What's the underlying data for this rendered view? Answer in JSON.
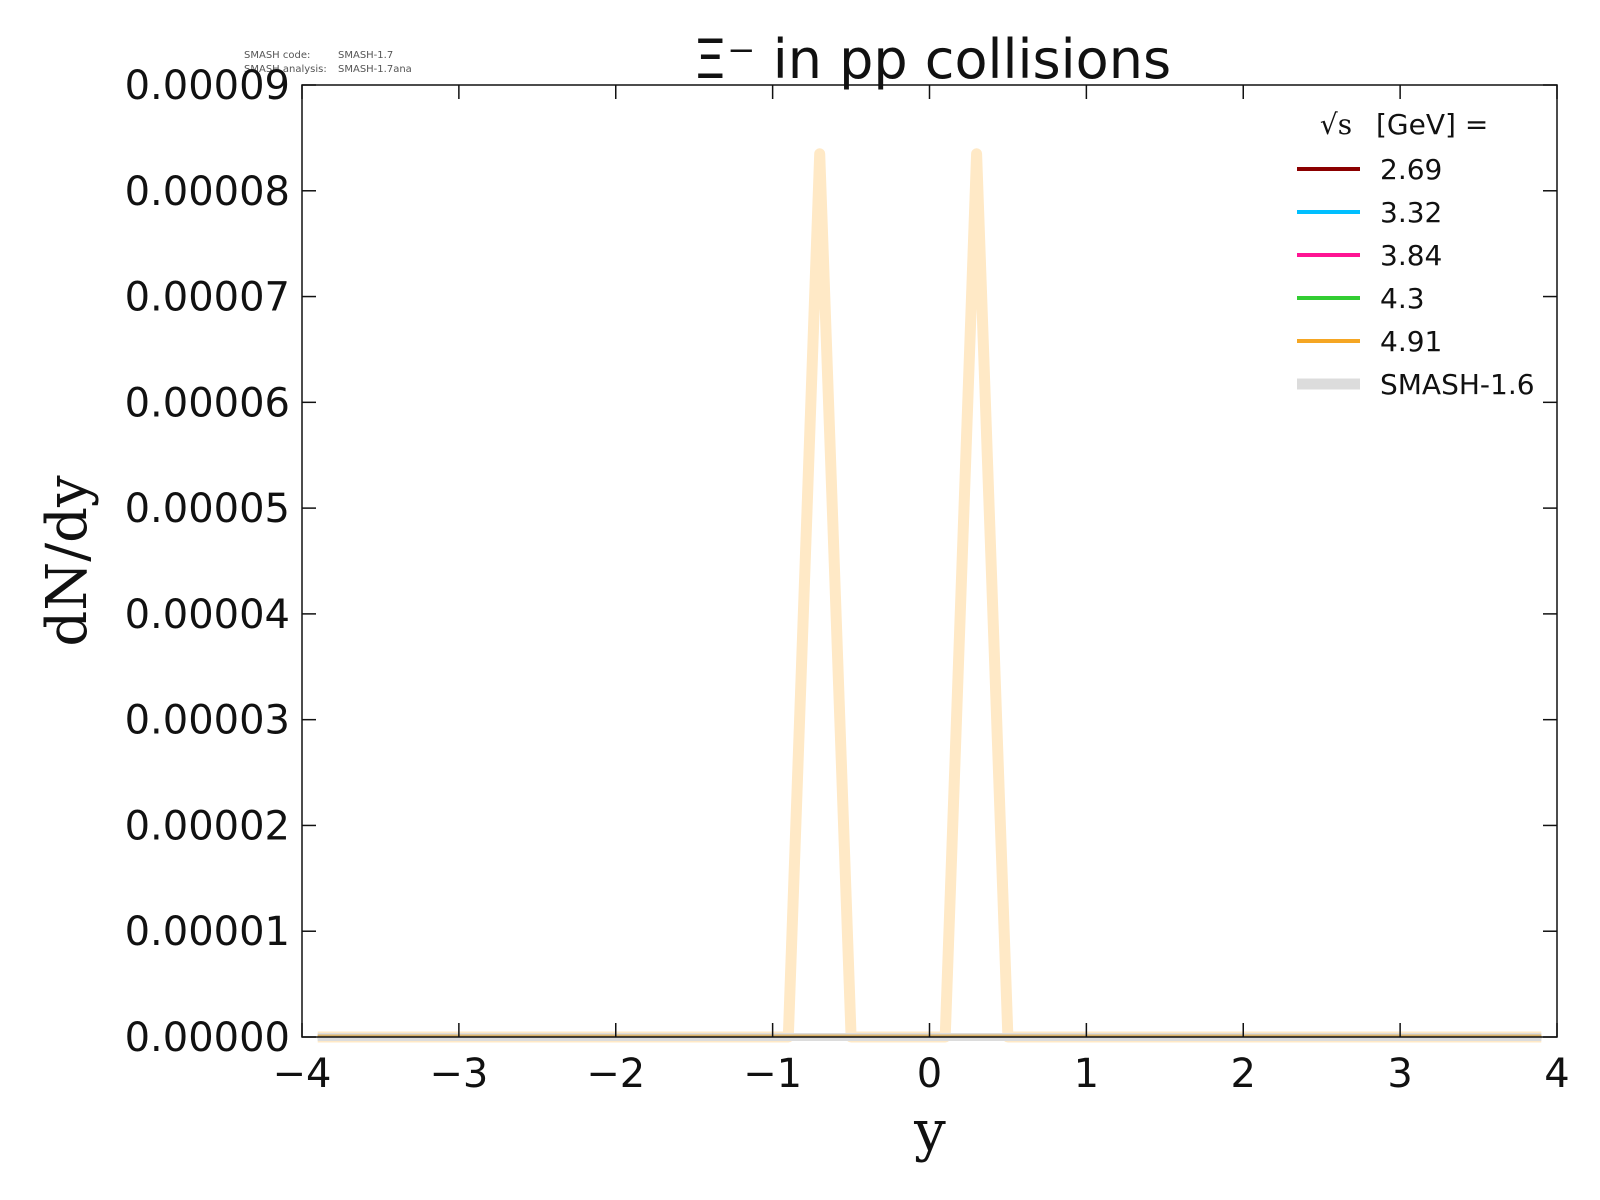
{
  "version_info": {
    "code_label": "SMASH code:",
    "code_value": "SMASH-1.7",
    "analysis_label": "SMASH analysis:",
    "analysis_value": "SMASH-1.7ana"
  },
  "chart_data": {
    "type": "line",
    "title": "Ξ⁻ in pp collisions",
    "xlabel": "y",
    "ylabel": "dN/dy",
    "xlim": [
      -4,
      4
    ],
    "ylim": [
      0,
      9e-05
    ],
    "x_ticks": [
      "−4",
      "−3",
      "−2",
      "−1",
      "0",
      "1",
      "2",
      "3",
      "4"
    ],
    "y_ticks": [
      "0.00000",
      "0.00001",
      "0.00002",
      "0.00003",
      "0.00004",
      "0.00005",
      "0.00006",
      "0.00007",
      "0.00008",
      "0.00009"
    ],
    "grid": false,
    "legend_title_symbol": "√s",
    "legend_title_unit": "[GeV] =",
    "legend_position": "top-right",
    "series": [
      {
        "name": "2.69",
        "color": "#8b0000",
        "x": [
          -3.9,
          3.9
        ],
        "y": [
          0,
          0
        ]
      },
      {
        "name": "3.32",
        "color": "#00bfff",
        "x": [
          -3.9,
          3.9
        ],
        "y": [
          0,
          0
        ]
      },
      {
        "name": "3.84",
        "color": "#ff1493",
        "x": [
          -3.9,
          3.9
        ],
        "y": [
          0,
          0
        ]
      },
      {
        "name": "4.3",
        "color": "#32cd32",
        "x": [
          -3.9,
          3.9
        ],
        "y": [
          0,
          0
        ]
      },
      {
        "name": "4.91",
        "color": "#f5a623",
        "x": [
          -3.9,
          3.9
        ],
        "y": [
          0,
          0
        ]
      },
      {
        "name": "SMASH-1.6",
        "color": "#dcdcdc",
        "x": [
          -3.9,
          3.9
        ],
        "y": [
          0,
          0
        ]
      }
    ],
    "reference_curve": {
      "color": "#ffe9c6",
      "x": [
        -3.9,
        -0.9,
        -0.7,
        -0.5,
        0.1,
        0.3,
        0.5,
        3.9
      ],
      "y": [
        0,
        0,
        8.35e-05,
        0,
        0,
        8.35e-05,
        0,
        0
      ]
    }
  }
}
